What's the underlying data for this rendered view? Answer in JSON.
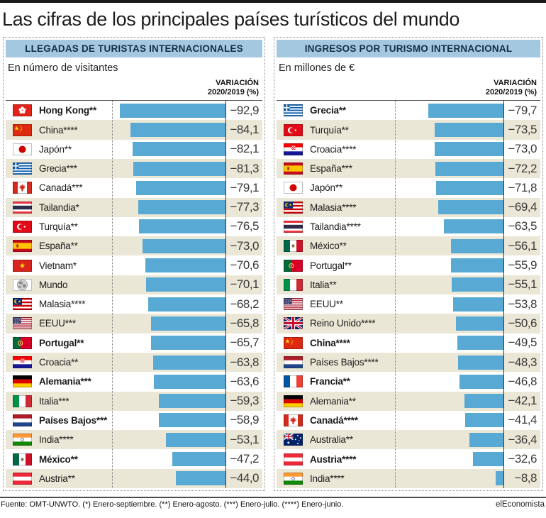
{
  "title": "Las cifras de los principales países turísticos del mundo",
  "footer": {
    "source": "Fuente: OMT-UNWTO. (*) Enero-septiembre. (**) Enero-agosto. (***) Enero-julio. (****) Enero-junio.",
    "brand": "elEconomista"
  },
  "colors": {
    "bar": "#58a9d3",
    "header_bg": "#a5c8e1",
    "row_alt": "#ebe7d6",
    "baseline": "#333333",
    "panel_border": "#8a8a8a"
  },
  "chart_data": [
    {
      "type": "bar",
      "title": "LLEGADAS DE TURISTAS INTERNACIONALES",
      "subtitle": "En número de visitantes",
      "value_header_line1": "VARIACIÓN",
      "value_header_line2": "2020/2019 (%)",
      "orientation": "horizontal",
      "bar_direction": "right-to-left",
      "axis_range": [
        -100,
        0
      ],
      "bar_scale_max": 100,
      "unit": "% variación 2020/2019",
      "rows": [
        {
          "label": "Hong Kong**",
          "flag": "hong-kong",
          "value": -92.9,
          "display": "−92,9",
          "bold": true
        },
        {
          "label": "China****",
          "flag": "china",
          "value": -84.1,
          "display": "−84,1",
          "bold": false
        },
        {
          "label": "Japón**",
          "flag": "japan",
          "value": -82.1,
          "display": "−82,1",
          "bold": false
        },
        {
          "label": "Grecia***",
          "flag": "greece",
          "value": -81.3,
          "display": "−81,3",
          "bold": false
        },
        {
          "label": "Canadá***",
          "flag": "canada",
          "value": -79.1,
          "display": "−79,1",
          "bold": false
        },
        {
          "label": "Tailandia*",
          "flag": "thailand",
          "value": -77.3,
          "display": "−77,3",
          "bold": false
        },
        {
          "label": "Turquía**",
          "flag": "turkey",
          "value": -76.5,
          "display": "−76,5",
          "bold": false
        },
        {
          "label": "España**",
          "flag": "spain",
          "value": -73.0,
          "display": "−73,0",
          "bold": false
        },
        {
          "label": "Vietnam*",
          "flag": "vietnam",
          "value": -70.6,
          "display": "−70,6",
          "bold": false
        },
        {
          "label": "Mundo",
          "flag": "world",
          "value": -70.1,
          "display": "−70,1",
          "bold": false
        },
        {
          "label": "Malasia****",
          "flag": "malaysia",
          "value": -68.2,
          "display": "−68,2",
          "bold": false
        },
        {
          "label": "EEUU***",
          "flag": "usa",
          "value": -65.8,
          "display": "−65,8",
          "bold": false
        },
        {
          "label": "Portugal**",
          "flag": "portugal",
          "value": -65.7,
          "display": "−65,7",
          "bold": true
        },
        {
          "label": "Croacia**",
          "flag": "croatia",
          "value": -63.8,
          "display": "−63,8",
          "bold": false
        },
        {
          "label": "Alemania***",
          "flag": "germany",
          "value": -63.6,
          "display": "−63,6",
          "bold": true
        },
        {
          "label": "Italia***",
          "flag": "italy",
          "value": -59.3,
          "display": "−59,3",
          "bold": false
        },
        {
          "label": "Países Bajos***",
          "flag": "netherlands",
          "value": -58.9,
          "display": "−58,9",
          "bold": true
        },
        {
          "label": "India****",
          "flag": "india",
          "value": -53.1,
          "display": "−53,1",
          "bold": false
        },
        {
          "label": "México**",
          "flag": "mexico",
          "value": -47.2,
          "display": "−47,2",
          "bold": true
        },
        {
          "label": "Austria**",
          "flag": "austria",
          "value": -44.0,
          "display": "−44,0",
          "bold": false
        }
      ]
    },
    {
      "type": "bar",
      "title": "INGRESOS POR TURISMO INTERNACIONAL",
      "subtitle": "En millones de €",
      "value_header_line1": "VARIACIÓN",
      "value_header_line2": "2020/2019 (%)",
      "orientation": "horizontal",
      "bar_direction": "right-to-left",
      "axis_range": [
        -115,
        0
      ],
      "bar_scale_max": 115,
      "unit": "% variación 2020/2019",
      "rows": [
        {
          "label": "Grecia**",
          "flag": "greece",
          "value": -79.7,
          "display": "−79,7",
          "bold": true
        },
        {
          "label": "Turquía**",
          "flag": "turkey",
          "value": -73.5,
          "display": "−73,5",
          "bold": false
        },
        {
          "label": "Croacia****",
          "flag": "croatia",
          "value": -73.0,
          "display": "−73,0",
          "bold": false
        },
        {
          "label": "España***",
          "flag": "spain",
          "value": -72.2,
          "display": "−72,2",
          "bold": false
        },
        {
          "label": "Japón**",
          "flag": "japan",
          "value": -71.8,
          "display": "−71,8",
          "bold": false
        },
        {
          "label": "Malasia****",
          "flag": "malaysia",
          "value": -69.4,
          "display": "−69,4",
          "bold": false
        },
        {
          "label": "Tailandia****",
          "flag": "thailand",
          "value": -63.5,
          "display": "−63,5",
          "bold": false
        },
        {
          "label": "México**",
          "flag": "mexico",
          "value": -56.1,
          "display": "−56,1",
          "bold": false
        },
        {
          "label": "Portugal**",
          "flag": "portugal",
          "value": -55.9,
          "display": "−55,9",
          "bold": false
        },
        {
          "label": "Italia**",
          "flag": "italy",
          "value": -55.1,
          "display": "−55,1",
          "bold": false
        },
        {
          "label": "EEUU**",
          "flag": "usa",
          "value": -53.8,
          "display": "−53,8",
          "bold": false
        },
        {
          "label": "Reino Unido****",
          "flag": "uk",
          "value": -50.6,
          "display": "−50,6",
          "bold": false
        },
        {
          "label": "China****",
          "flag": "china",
          "value": -49.5,
          "display": "−49,5",
          "bold": true
        },
        {
          "label": "Países Bajos****",
          "flag": "netherlands",
          "value": -48.3,
          "display": "−48,3",
          "bold": false
        },
        {
          "label": "Francia**",
          "flag": "france",
          "value": -46.8,
          "display": "−46,8",
          "bold": true
        },
        {
          "label": "Alemania**",
          "flag": "germany",
          "value": -42.1,
          "display": "−42,1",
          "bold": false
        },
        {
          "label": "Canadá****",
          "flag": "canada",
          "value": -41.4,
          "display": "−41,4",
          "bold": true
        },
        {
          "label": "Australia**",
          "flag": "australia",
          "value": -36.4,
          "display": "−36,4",
          "bold": false
        },
        {
          "label": "Austria****",
          "flag": "austria",
          "value": -32.6,
          "display": "−32,6",
          "bold": true
        },
        {
          "label": "India****",
          "flag": "india",
          "value": -8.8,
          "display": "−8,8",
          "bold": false
        }
      ]
    }
  ]
}
